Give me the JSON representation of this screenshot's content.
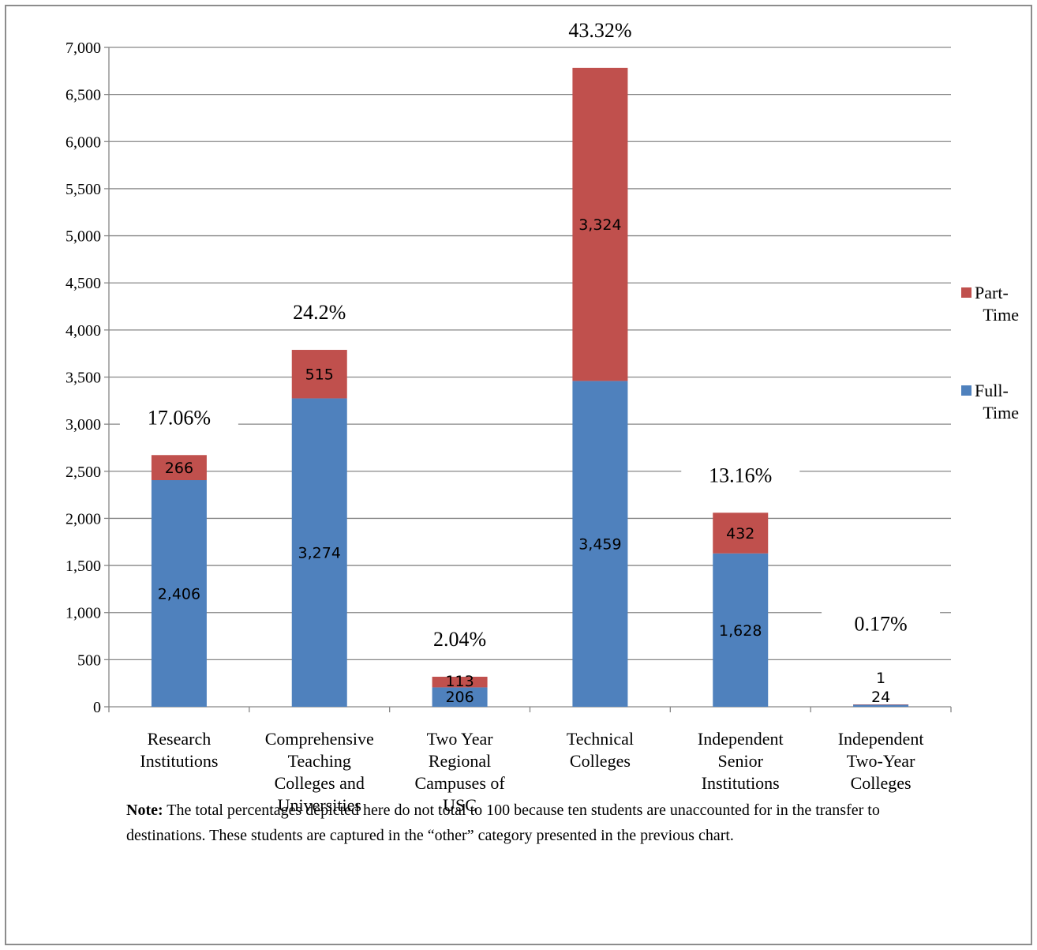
{
  "chart_data": {
    "type": "bar",
    "stacked": true,
    "categories": [
      [
        "Research",
        "Institutions"
      ],
      [
        "Comprehensive",
        "Teaching",
        "Colleges and",
        "Universities"
      ],
      [
        "Two Year",
        "Regional",
        "Campuses of",
        "USC"
      ],
      [
        "Technical",
        "Colleges"
      ],
      [
        "Independent",
        "Senior",
        "Institutions"
      ],
      [
        "Independent",
        "Two-Year",
        "Colleges"
      ]
    ],
    "series": [
      {
        "name": "Full-Time",
        "color": "#4f81bd",
        "values": [
          2406,
          3274,
          206,
          3459,
          1628,
          24
        ],
        "labels": [
          "2,406",
          "3,274",
          "206",
          "3,459",
          "1,628",
          "24"
        ]
      },
      {
        "name": "Part-Time",
        "color": "#c0504d",
        "values": [
          266,
          515,
          113,
          3324,
          432,
          1
        ],
        "labels": [
          "266",
          "515",
          "113",
          "3,324",
          "432",
          "1"
        ]
      }
    ],
    "percent_labels": [
      "17.06%",
      "24.2%",
      "2.04%",
      "43.32%",
      "13.16%",
      "0.17%"
    ],
    "yticks": [
      "0",
      "500",
      "1,000",
      "1,500",
      "2,000",
      "2,500",
      "3,000",
      "3,500",
      "4,000",
      "4,500",
      "5,000",
      "5,500",
      "6,000",
      "6,500",
      "7,000"
    ],
    "ylim": [
      0,
      7000
    ],
    "ystep": 500,
    "legend": {
      "position": "right",
      "entries": [
        {
          "lines": [
            "Part-",
            "Time"
          ],
          "color": "#c0504d"
        },
        {
          "lines": [
            "Full-",
            "Time"
          ],
          "color": "#4f81bd"
        }
      ]
    },
    "grid": true
  },
  "note": {
    "label": "Note:",
    "text": " The total percentages depicted here do not total to 100 because ten students are unaccounted for in the transfer to destinations.  These students are captured in the “other” category presented in the previous chart."
  }
}
